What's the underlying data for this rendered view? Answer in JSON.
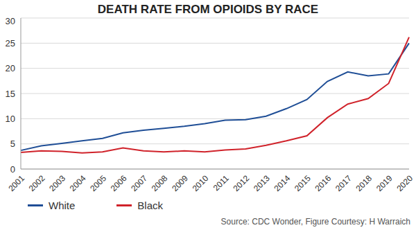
{
  "chart_data": {
    "type": "line",
    "title": "DEATH RATE FROM OPIOIDS BY RACE",
    "source": "Source: CDC Wonder, Figure Courtesy: H Warraich",
    "categories": [
      "2001",
      "2002",
      "2003",
      "2004",
      "2005",
      "2006",
      "2007",
      "2008",
      "2009",
      "2010",
      "2011",
      "2012",
      "2013",
      "2014",
      "2015",
      "2016",
      "2017",
      "2018",
      "2019",
      "2020"
    ],
    "series": [
      {
        "name": "White",
        "color": "#1f4e96",
        "values": [
          3.7,
          4.6,
          5.1,
          5.6,
          6.1,
          7.2,
          7.7,
          8.1,
          8.5,
          9.0,
          9.7,
          9.8,
          10.5,
          12.0,
          13.8,
          17.4,
          19.3,
          18.5,
          18.9,
          25.0
        ]
      },
      {
        "name": "Black",
        "color": "#d0222a",
        "values": [
          3.3,
          3.6,
          3.5,
          3.2,
          3.4,
          4.2,
          3.6,
          3.4,
          3.6,
          3.4,
          3.8,
          4.0,
          4.7,
          5.6,
          6.6,
          10.2,
          12.9,
          14.0,
          17.0,
          26.2
        ]
      }
    ],
    "ylim": [
      0,
      30
    ],
    "yticks": [
      0,
      5,
      10,
      15,
      20,
      25,
      30
    ],
    "grid": true,
    "legend": "lower-left"
  }
}
